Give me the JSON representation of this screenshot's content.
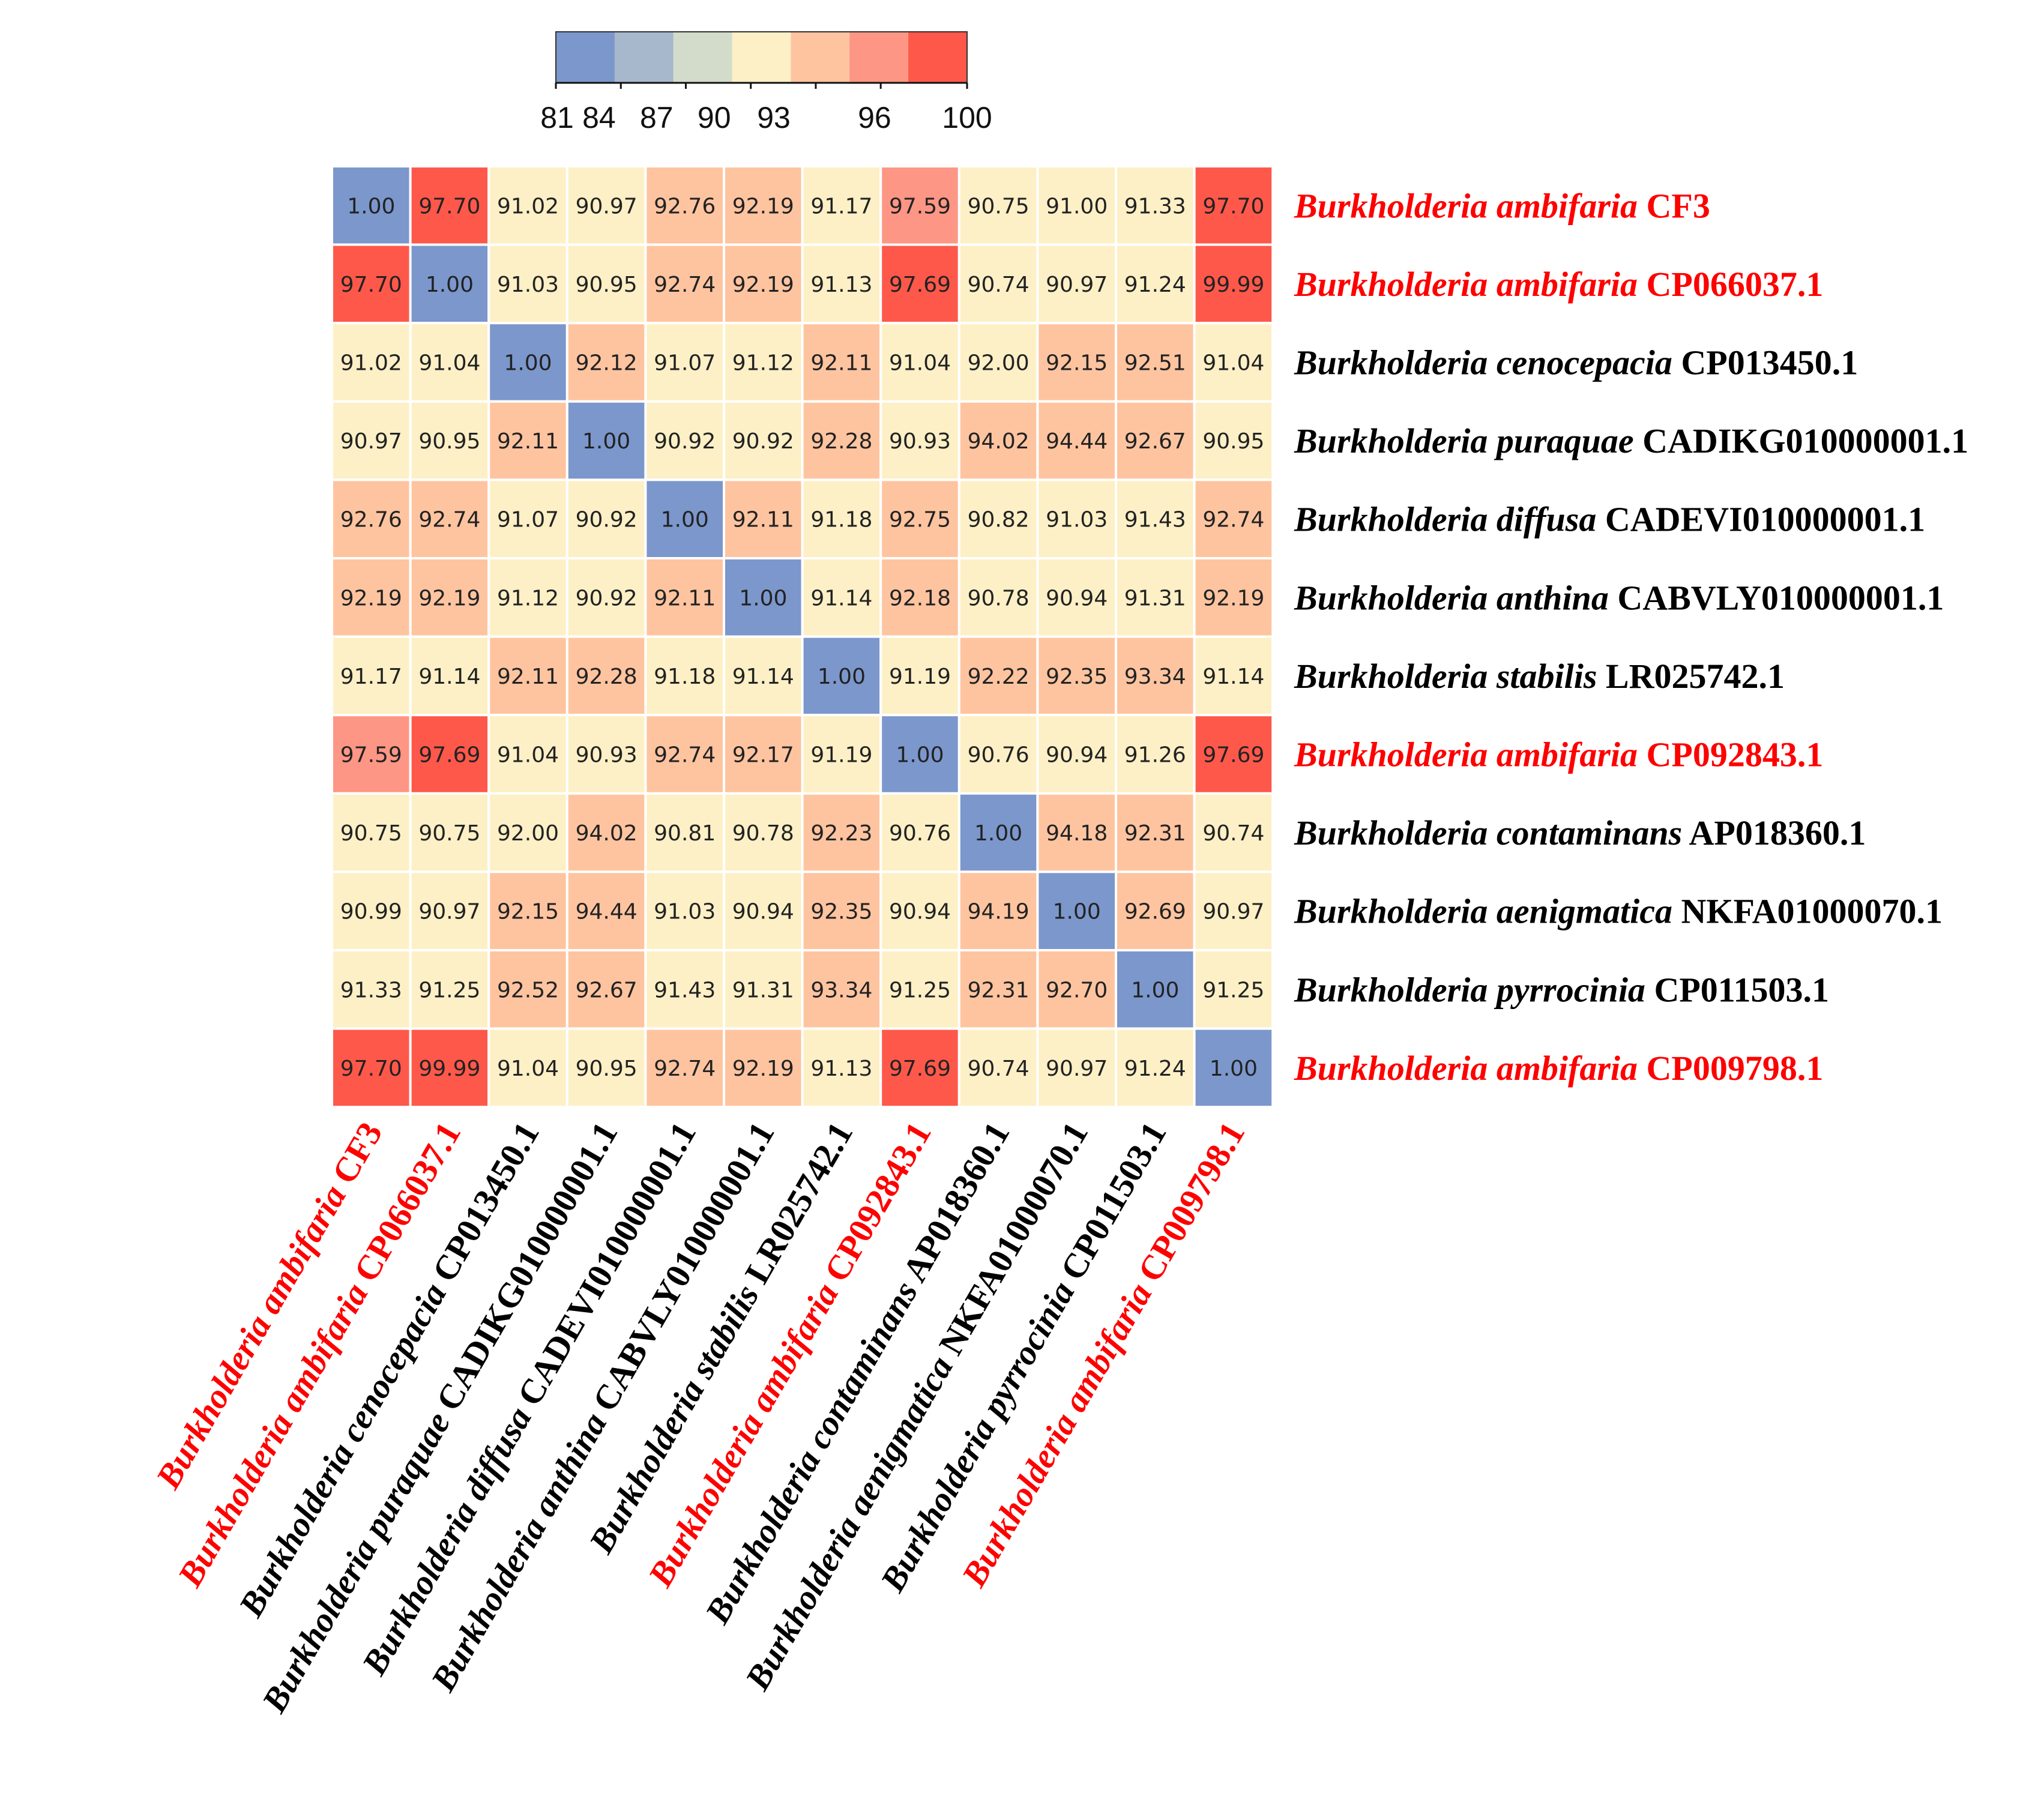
{
  "chart_data": {
    "type": "heatmap",
    "title": "",
    "colorbar": {
      "ticks": [
        "81",
        "84",
        "87",
        "90",
        "93",
        "96",
        "100"
      ],
      "colors": [
        "#7b97cc",
        "#a7b8cc",
        "#d3dccb",
        "#fdf0c6",
        "#fec4a0",
        "#fe9685",
        "#fe584b"
      ],
      "range": [
        81,
        100
      ]
    },
    "highlight_color": "#ff0000",
    "normal_color": "#000000",
    "labels": [
      {
        "genus": "Burkholderia",
        "species": "ambifaria",
        "strain": "CF3",
        "highlight": true
      },
      {
        "genus": "Burkholderia",
        "species": "ambifaria",
        "strain": "CP066037.1",
        "highlight": true
      },
      {
        "genus": "Burkholderia",
        "species": "cenocepacia",
        "strain": "CP013450.1",
        "highlight": false
      },
      {
        "genus": "Burkholderia",
        "species": "puraquae",
        "strain": "CADIKG010000001.1",
        "highlight": false
      },
      {
        "genus": "Burkholderia",
        "species": "diffusa",
        "strain": "CADEVI010000001.1",
        "highlight": false
      },
      {
        "genus": "Burkholderia",
        "species": "anthina",
        "strain": "CABVLY010000001.1",
        "highlight": false
      },
      {
        "genus": "Burkholderia",
        "species": "stabilis",
        "strain": "LR025742.1",
        "highlight": false
      },
      {
        "genus": "Burkholderia",
        "species": "ambifaria",
        "strain": "CP092843.1",
        "highlight": true
      },
      {
        "genus": "Burkholderia",
        "species": "contaminans",
        "strain": "AP018360.1",
        "highlight": false
      },
      {
        "genus": "Burkholderia",
        "species": "aenigmatica",
        "strain": "NKFA01000070.1",
        "highlight": false
      },
      {
        "genus": "Burkholderia",
        "species": "pyrrocinia",
        "strain": "CP011503.1",
        "highlight": false
      },
      {
        "genus": "Burkholderia",
        "species": "ambifaria",
        "strain": "CP009798.1",
        "highlight": true
      }
    ],
    "matrix": [
      [
        "1.00",
        "97.70",
        "91.02",
        "90.97",
        "92.76",
        "92.19",
        "91.17",
        "97.59",
        "90.75",
        "91.00",
        "91.33",
        "97.70"
      ],
      [
        "97.70",
        "1.00",
        "91.03",
        "90.95",
        "92.74",
        "92.19",
        "91.13",
        "97.69",
        "90.74",
        "90.97",
        "91.24",
        "99.99"
      ],
      [
        "91.02",
        "91.04",
        "1.00",
        "92.12",
        "91.07",
        "91.12",
        "92.11",
        "91.04",
        "92.00",
        "92.15",
        "92.51",
        "91.04"
      ],
      [
        "90.97",
        "90.95",
        "92.11",
        "1.00",
        "90.92",
        "90.92",
        "92.28",
        "90.93",
        "94.02",
        "94.44",
        "92.67",
        "90.95"
      ],
      [
        "92.76",
        "92.74",
        "91.07",
        "90.92",
        "1.00",
        "92.11",
        "91.18",
        "92.75",
        "90.82",
        "91.03",
        "91.43",
        "92.74"
      ],
      [
        "92.19",
        "92.19",
        "91.12",
        "90.92",
        "92.11",
        "1.00",
        "91.14",
        "92.18",
        "90.78",
        "90.94",
        "91.31",
        "92.19"
      ],
      [
        "91.17",
        "91.14",
        "92.11",
        "92.28",
        "91.18",
        "91.14",
        "1.00",
        "91.19",
        "92.22",
        "92.35",
        "93.34",
        "91.14"
      ],
      [
        "97.59",
        "97.69",
        "91.04",
        "90.93",
        "92.74",
        "92.17",
        "91.19",
        "1.00",
        "90.76",
        "90.94",
        "91.26",
        "97.69"
      ],
      [
        "90.75",
        "90.75",
        "92.00",
        "94.02",
        "90.81",
        "90.78",
        "92.23",
        "90.76",
        "1.00",
        "94.18",
        "92.31",
        "90.74"
      ],
      [
        "90.99",
        "90.97",
        "92.15",
        "94.44",
        "91.03",
        "90.94",
        "92.35",
        "90.94",
        "94.19",
        "1.00",
        "92.69",
        "90.97"
      ],
      [
        "91.33",
        "91.25",
        "92.52",
        "92.67",
        "91.43",
        "91.31",
        "93.34",
        "91.25",
        "92.31",
        "92.70",
        "1.00",
        "91.25"
      ],
      [
        "97.70",
        "99.99",
        "91.04",
        "90.95",
        "92.74",
        "92.19",
        "91.13",
        "97.69",
        "90.74",
        "90.97",
        "91.24",
        "1.00"
      ]
    ]
  }
}
